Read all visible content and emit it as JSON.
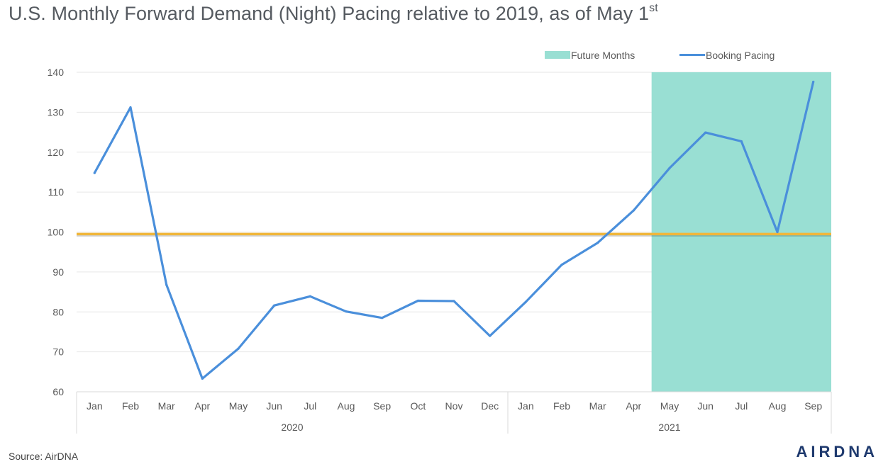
{
  "title": {
    "text": "U.S. Monthly Forward Demand (Night) Pacing relative to 2019, as of May 1",
    "sup": "st"
  },
  "source": "Source: AirDNA",
  "logo": "AIRDNA",
  "colors": {
    "pacing_line": "#4a8fdb",
    "baseline": "#f0b63a",
    "future_band": "#99dfd3",
    "grid": "#e6e6e6",
    "text": "#595959"
  },
  "chart_data": {
    "type": "line",
    "title": "U.S. Monthly Forward Demand (Night) Pacing relative to 2019, as of May 1st",
    "categories": [
      "Jan",
      "Feb",
      "Mar",
      "Apr",
      "May",
      "Jun",
      "Jul",
      "Aug",
      "Sep",
      "Oct",
      "Nov",
      "Dec",
      "Jan",
      "Feb",
      "Mar",
      "Apr",
      "May",
      "Jun",
      "Jul",
      "Aug",
      "Sep"
    ],
    "year_groups": [
      {
        "label": "2020",
        "start": 0,
        "end": 11
      },
      {
        "label": "2021",
        "start": 12,
        "end": 20
      }
    ],
    "series": [
      {
        "name": "Booking Pacing",
        "values": [
          114.8,
          131.2,
          86.8,
          63.3,
          70.8,
          81.6,
          83.9,
          80.1,
          78.5,
          82.8,
          82.7,
          74.0,
          82.5,
          91.8,
          97.3,
          105.4,
          116.0,
          124.9,
          122.7,
          100.0,
          137.6
        ]
      }
    ],
    "baseline": {
      "value": 99.5
    },
    "future_range": {
      "name": "Future Months",
      "start": 16,
      "end": 20
    },
    "legend": [
      {
        "label": "Future Months",
        "kind": "band"
      },
      {
        "label": "Booking Pacing",
        "kind": "line"
      }
    ],
    "legend_position": "top-right",
    "yticks": [
      60,
      70,
      80,
      90,
      100,
      110,
      120,
      130,
      140
    ],
    "ylim": [
      60,
      140
    ],
    "grid": true
  }
}
